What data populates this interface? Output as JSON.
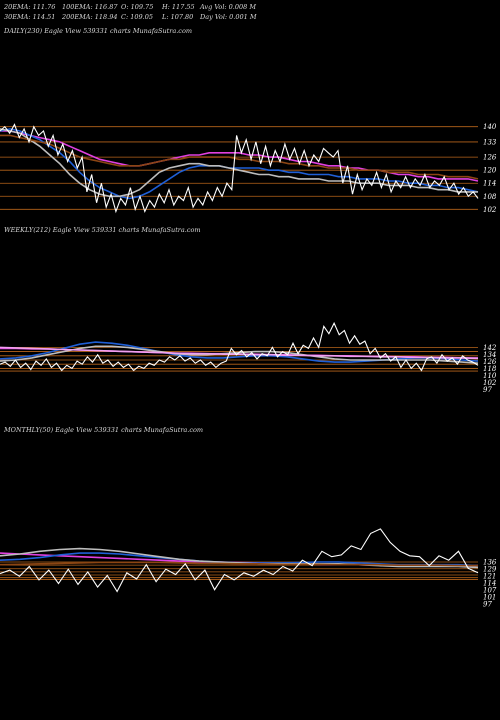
{
  "header": {
    "r1": [
      "20EMA: 111.76",
      "100EMA: 116.87",
      "O: 109.75",
      "H: 117.55",
      "Avg Vol: 0.008 M"
    ],
    "r2": [
      "30EMA: 114.51",
      "200EMA: 118.94",
      "C: 109.05",
      "L: 107.80",
      "Day Vol: 0.001 M"
    ]
  },
  "panels": [
    {
      "label": "DAILY(230) Eagle  View  539331 charts MunafaSutra.com"
    },
    {
      "label": "WEEKLY(212) Eagle  View  539331 charts MunafaSutra.com"
    },
    {
      "label": "MONTHLY(50) Eagle  View  539331 charts MunafaSutra.com"
    }
  ],
  "colors": {
    "background": "#000000",
    "price": "#ffffff",
    "ema_blue": "#1f5fd6",
    "ema_magenta": "#e040e0",
    "ema_pink": "#f0a0f0",
    "ema_gray": "#bdbdbd",
    "grid_orange": "#b8651b",
    "ema_brown": "#8b4513"
  },
  "chart_data": [
    {
      "type": "line",
      "title": "DAILY(230)",
      "ylim": [
        98,
        144
      ],
      "levels": [
        140,
        133,
        126,
        120,
        114,
        108,
        102
      ],
      "tick_labels": [
        "140",
        "133",
        "126",
        "120",
        "114",
        "108",
        "102"
      ],
      "price": [
        138,
        140,
        137,
        141,
        135,
        139,
        133,
        140,
        136,
        138,
        131,
        136,
        127,
        132,
        124,
        129,
        121,
        126,
        110,
        118,
        105,
        114,
        103,
        109,
        101,
        107,
        104,
        112,
        102,
        108,
        101,
        106,
        103,
        109,
        105,
        111,
        104,
        108,
        106,
        112,
        103,
        107,
        104,
        110,
        106,
        112,
        108,
        114,
        111,
        136,
        128,
        134,
        125,
        133,
        123,
        131,
        122,
        129,
        124,
        132,
        125,
        130,
        123,
        129,
        122,
        127,
        124,
        130,
        128,
        126,
        129,
        114,
        122,
        109,
        118,
        111,
        116,
        113,
        119,
        112,
        118,
        110,
        115,
        112,
        117,
        112,
        116,
        113,
        118,
        112,
        115,
        113,
        117,
        111,
        114,
        109,
        112,
        108,
        110,
        107
      ],
      "ema_lines": [
        {
          "color": "#e040e0",
          "values": [
            138,
            138,
            137,
            136,
            135,
            134,
            133,
            131,
            129,
            127,
            125,
            124,
            123,
            122,
            122,
            123,
            124,
            125,
            126,
            127,
            127,
            128,
            128,
            128,
            128,
            127,
            127,
            126,
            126,
            125,
            124,
            124,
            123,
            122,
            122,
            121,
            121,
            120,
            120,
            119,
            118,
            118,
            117,
            117,
            116,
            116,
            116,
            116,
            115
          ]
        },
        {
          "color": "#1f5fd6",
          "values": [
            138,
            139,
            138,
            136,
            134,
            131,
            128,
            124,
            119,
            115,
            112,
            110,
            108,
            107,
            108,
            110,
            113,
            116,
            119,
            121,
            122,
            122,
            122,
            121,
            121,
            121,
            121,
            120,
            120,
            119,
            119,
            118,
            118,
            118,
            117,
            117,
            116,
            116,
            116,
            115,
            115,
            114,
            114,
            113,
            113,
            112,
            112,
            111,
            110
          ]
        },
        {
          "color": "#bdbdbd",
          "values": [
            139,
            138,
            137,
            134,
            131,
            127,
            123,
            118,
            114,
            111,
            109,
            108,
            108,
            109,
            111,
            115,
            119,
            121,
            122,
            123,
            123,
            122,
            122,
            121,
            120,
            119,
            118,
            118,
            117,
            117,
            116,
            116,
            116,
            115,
            115,
            115,
            114,
            114,
            114,
            113,
            113,
            113,
            112,
            112,
            111,
            111,
            110,
            110,
            110
          ]
        },
        {
          "color": "#8b4513",
          "values": [
            136,
            136,
            135,
            134,
            133,
            132,
            130,
            128,
            126,
            125,
            124,
            123,
            122,
            122,
            122,
            123,
            124,
            125,
            125,
            126,
            126,
            126,
            126,
            126,
            125,
            125,
            124,
            124,
            124,
            123,
            123,
            122,
            122,
            121,
            121,
            121,
            120,
            120,
            120,
            119,
            119,
            119,
            118,
            118,
            118,
            117,
            117,
            117,
            116
          ]
        }
      ]
    },
    {
      "type": "line",
      "title": "WEEKLY(212)",
      "ylim": [
        80,
        194
      ],
      "levels": [
        142,
        134,
        126,
        118,
        110,
        102,
        97
      ],
      "tick_labels": [
        "142",
        "134",
        "126",
        "118",
        "110",
        "102",
        "97"
      ],
      "price": [
        110,
        114,
        106,
        118,
        104,
        112,
        100,
        116,
        108,
        120,
        104,
        112,
        98,
        108,
        102,
        116,
        110,
        124,
        114,
        128,
        112,
        118,
        106,
        114,
        104,
        110,
        98,
        106,
        102,
        112,
        108,
        118,
        114,
        124,
        118,
        126,
        116,
        122,
        112,
        118,
        108,
        114,
        104,
        112,
        116,
        140,
        128,
        136,
        124,
        132,
        120,
        130,
        126,
        142,
        124,
        134,
        128,
        150,
        130,
        146,
        140,
        160,
        142,
        182,
        168,
        188,
        166,
        174,
        150,
        164,
        148,
        154,
        130,
        140,
        122,
        130,
        116,
        124,
        104,
        118,
        102,
        112,
        98,
        120,
        124,
        112,
        128,
        116,
        122,
        110,
        126,
        118,
        114,
        108
      ],
      "ema_lines": [
        {
          "color": "#e040e0",
          "values": [
            140,
            140,
            139,
            139,
            138,
            137,
            136,
            135,
            134,
            133,
            132,
            131,
            131,
            130,
            130,
            129,
            129,
            128,
            128,
            127,
            127,
            126,
            126,
            125,
            125,
            124,
            124,
            123,
            123,
            122,
            122
          ]
        },
        {
          "color": "#1f5fd6",
          "values": [
            120,
            122,
            126,
            132,
            140,
            148,
            152,
            150,
            146,
            140,
            134,
            128,
            124,
            122,
            122,
            124,
            126,
            126,
            124,
            120,
            116,
            114,
            114,
            116,
            118,
            120,
            122,
            122,
            120,
            118,
            116
          ]
        },
        {
          "color": "#bdbdbd",
          "values": [
            116,
            118,
            122,
            128,
            134,
            140,
            144,
            144,
            142,
            138,
            134,
            130,
            128,
            128,
            130,
            132,
            134,
            134,
            132,
            128,
            124,
            120,
            118,
            118,
            118,
            118,
            118,
            118,
            116,
            114,
            112
          ]
        },
        {
          "color": "#f0a0f0",
          "values": [
            142,
            141,
            140,
            139,
            138,
            137,
            136,
            135,
            134,
            133,
            132,
            131,
            130,
            130,
            129,
            129,
            128,
            128,
            127,
            127,
            126,
            126,
            125,
            125,
            124,
            124,
            123,
            123,
            122,
            122,
            121
          ]
        }
      ]
    },
    {
      "type": "line",
      "title": "MONTHLY(50)",
      "ylim": [
        60,
        230
      ],
      "levels": [
        136,
        129,
        121,
        114,
        107,
        101,
        97
      ],
      "tick_labels": [
        "136",
        "129",
        "121",
        "114",
        "107",
        "101",
        "97"
      ],
      "price": [
        110,
        118,
        104,
        126,
        96,
        118,
        88,
        120,
        86,
        114,
        80,
        106,
        70,
        112,
        98,
        130,
        92,
        120,
        108,
        132,
        96,
        118,
        74,
        108,
        96,
        112,
        104,
        118,
        108,
        126,
        116,
        140,
        128,
        160,
        148,
        152,
        172,
        164,
        200,
        210,
        180,
        160,
        150,
        148,
        128,
        150,
        140,
        160,
        122,
        112
      ],
      "ema_lines": [
        {
          "color": "#e040e0",
          "values": [
            156,
            154,
            152,
            150,
            148,
            146,
            144,
            142,
            140,
            138,
            137,
            136,
            135,
            134,
            133,
            132,
            131,
            130,
            130,
            129,
            129,
            128,
            128,
            128,
            128
          ]
        },
        {
          "color": "#1f5fd6",
          "values": [
            140,
            142,
            146,
            152,
            156,
            156,
            154,
            150,
            146,
            142,
            138,
            136,
            134,
            134,
            134,
            135,
            136,
            136,
            134,
            132,
            130,
            130,
            130,
            130,
            128
          ]
        },
        {
          "color": "#bdbdbd",
          "values": [
            150,
            154,
            160,
            164,
            166,
            164,
            160,
            154,
            148,
            142,
            138,
            136,
            134,
            132,
            132,
            132,
            132,
            132,
            130,
            128,
            126,
            126,
            126,
            126,
            124
          ]
        },
        {
          "color": "#8b4513",
          "values": [
            130,
            131,
            132,
            133,
            134,
            135,
            135,
            135,
            135,
            134,
            133,
            133,
            132,
            132,
            131,
            131,
            131,
            130,
            130,
            130,
            129,
            129,
            129,
            128,
            128
          ]
        }
      ]
    }
  ]
}
